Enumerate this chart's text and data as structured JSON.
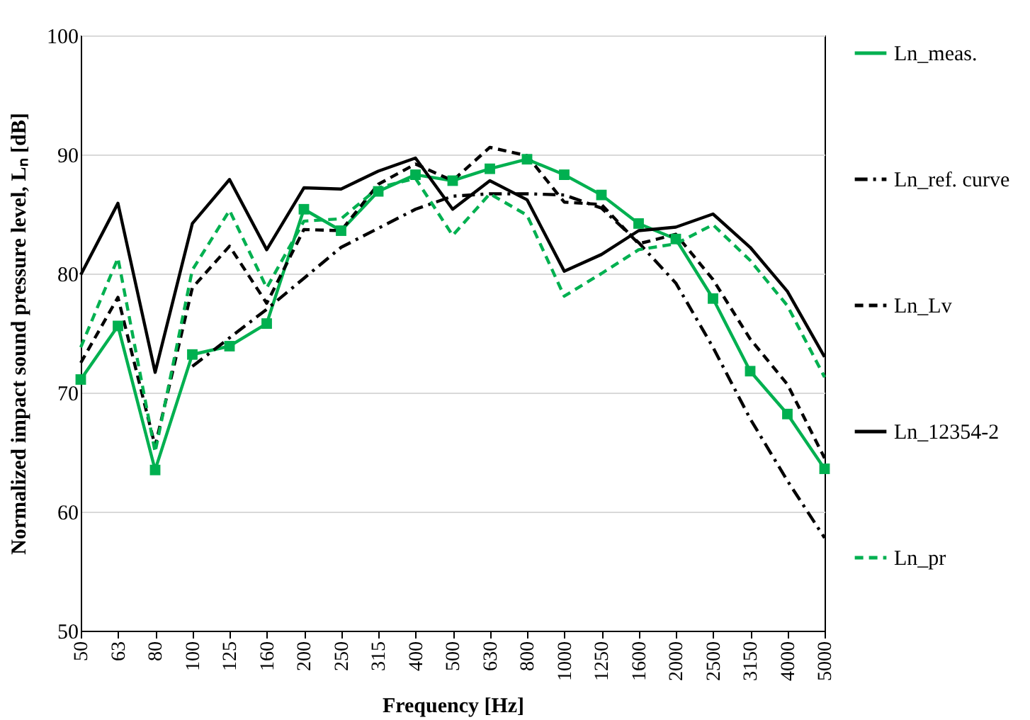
{
  "chart_data": {
    "type": "line",
    "xlabel": "Frequency [Hz]",
    "ylabel": "Normalized impact sound pressure level, Lₙ [dB]",
    "categories": [
      "50",
      "63",
      "80",
      "100",
      "125",
      "160",
      "200",
      "250",
      "315",
      "400",
      "500",
      "630",
      "800",
      "1000",
      "1250",
      "1600",
      "2000",
      "2500",
      "3150",
      "4000",
      "5000"
    ],
    "ylim": [
      50,
      100
    ],
    "yticks": [
      50,
      60,
      70,
      80,
      90,
      100
    ],
    "grid": "y",
    "legend": "right",
    "series": [
      {
        "name": "Ln_meas.",
        "color": "#00b050",
        "line_style": "solid",
        "marker": "square",
        "values": [
          71.1,
          75.6,
          63.5,
          73.2,
          73.9,
          75.8,
          85.4,
          83.6,
          86.9,
          88.3,
          87.8,
          88.8,
          89.6,
          88.3,
          86.6,
          84.2,
          82.9,
          77.9,
          71.8,
          68.2,
          63.6
        ]
      },
      {
        "name": "Ln_ref. curve",
        "color": "#000000",
        "line_style": "dashdot",
        "values": [
          null,
          null,
          null,
          72.2,
          74.6,
          77.0,
          79.6,
          82.2,
          83.8,
          85.4,
          86.5,
          86.7,
          86.7,
          86.6,
          85.5,
          82.6,
          79.2,
          73.8,
          67.8,
          62.6,
          57.8
        ]
      },
      {
        "name": "Ln_Lv",
        "color": "#000000",
        "line_style": "dashed",
        "values": [
          72.5,
          78.0,
          65.5,
          78.8,
          82.3,
          77.5,
          83.7,
          83.6,
          87.5,
          89.2,
          87.8,
          90.6,
          89.9,
          86.0,
          85.8,
          82.5,
          83.3,
          79.5,
          74.5,
          70.7,
          64.5
        ]
      },
      {
        "name": "Ln_12354-2",
        "color": "#000000",
        "line_style": "solid",
        "values": [
          79.9,
          85.9,
          71.7,
          84.2,
          87.9,
          82.0,
          87.2,
          87.1,
          88.6,
          89.7,
          85.4,
          87.8,
          86.2,
          80.2,
          81.6,
          83.6,
          83.9,
          85.0,
          82.2,
          78.5,
          73.0
        ]
      },
      {
        "name": "Ln_pr",
        "color": "#00b050",
        "line_style": "dashed",
        "values": [
          73.8,
          81.3,
          65.0,
          80.3,
          85.3,
          78.8,
          84.4,
          84.6,
          87.2,
          88.0,
          83.2,
          86.7,
          84.9,
          78.1,
          80.0,
          82.0,
          82.5,
          84.1,
          81.1,
          77.3,
          71.3
        ]
      }
    ]
  }
}
